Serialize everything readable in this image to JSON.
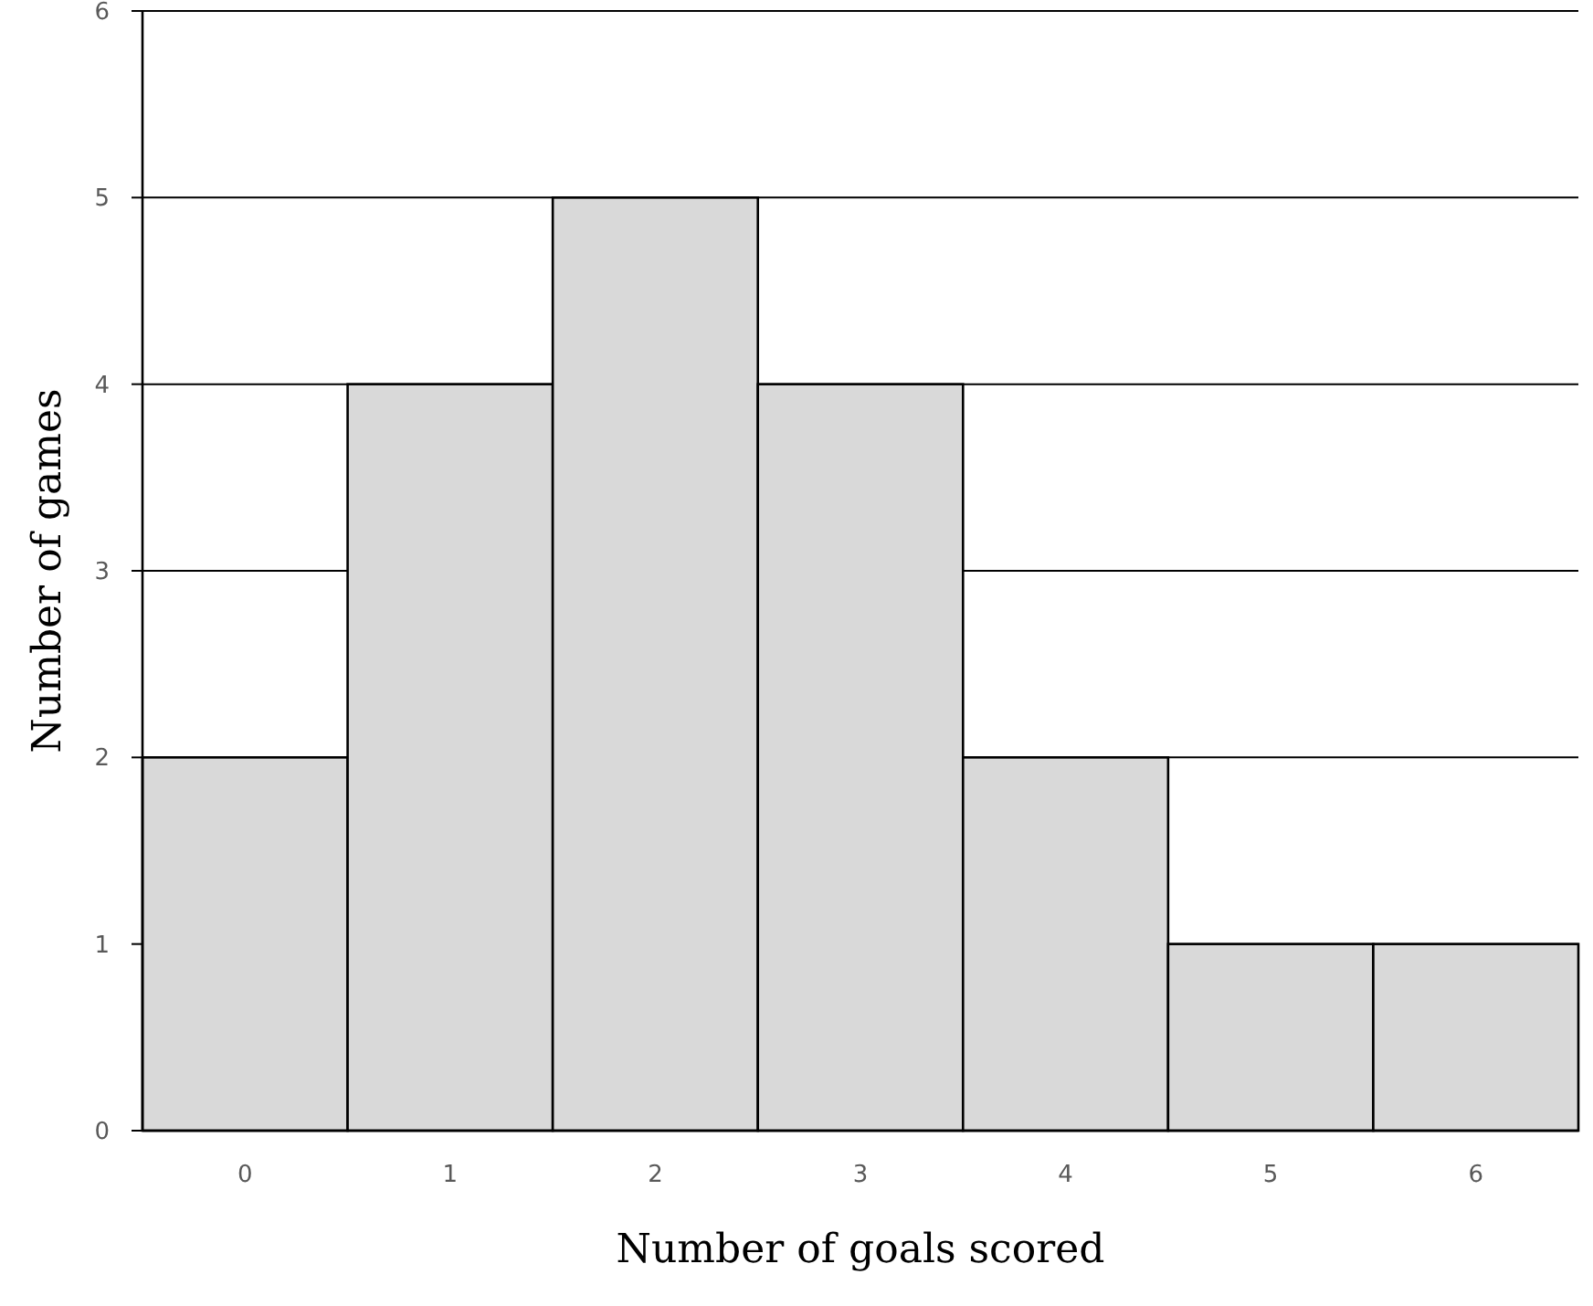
{
  "chart_data": {
    "type": "bar",
    "xlabel": "Number of goals scored",
    "ylabel": "Number of games",
    "categories": [
      "0",
      "1",
      "2",
      "3",
      "4",
      "5",
      "6"
    ],
    "values": [
      2,
      4,
      5,
      4,
      2,
      1,
      1
    ],
    "color": "#d9d9d9",
    "ylim": [
      0,
      6
    ],
    "yticks": [
      0,
      1,
      2,
      3,
      4,
      5,
      6
    ],
    "grid": "y"
  }
}
